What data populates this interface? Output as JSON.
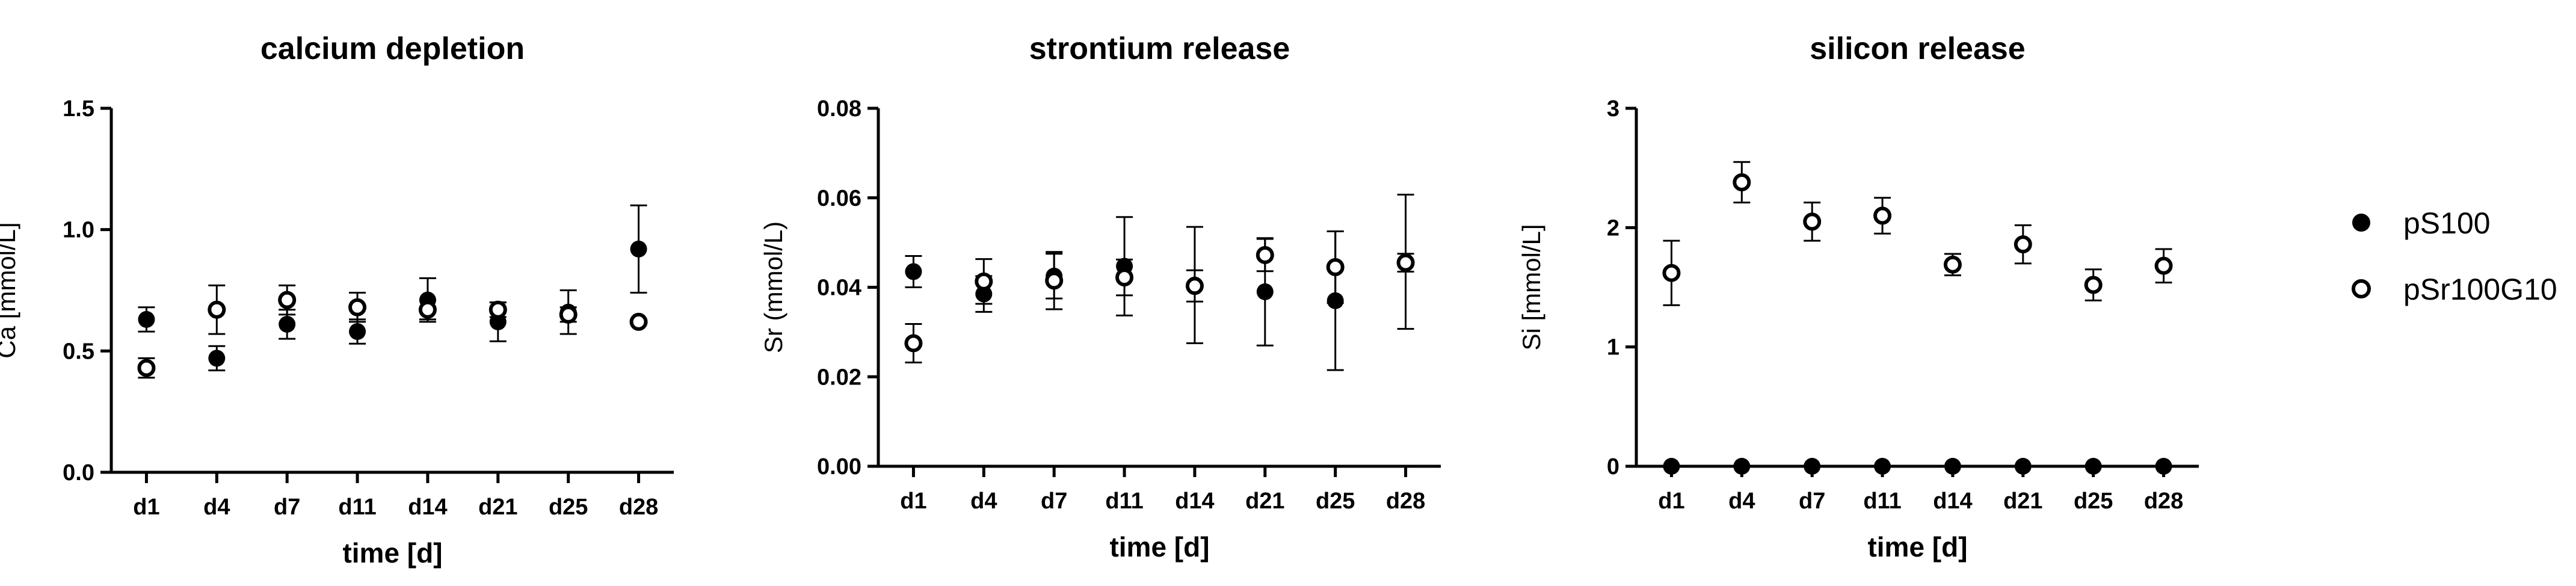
{
  "legend": [
    {
      "name": "pS100",
      "marker": "filled-circle"
    },
    {
      "name": "pSr100G10",
      "marker": "open-circle"
    }
  ],
  "colors": {
    "markers": "#000000",
    "background": "#ffffff"
  },
  "chart_data": [
    {
      "type": "scatter",
      "title": "calcium depletion",
      "xlabel": "time [d]",
      "ylabel": "Ca [mmol/L]",
      "categories": [
        "d1",
        "d4",
        "d7",
        "d11",
        "d14",
        "d21",
        "d25",
        "d28"
      ],
      "ylim": [
        0,
        1.5
      ],
      "yticks": [
        "0.0",
        "0.5",
        "1.0",
        "1.5"
      ],
      "ytick_values": [
        0,
        0.5,
        1.0,
        1.5
      ],
      "grid": false,
      "series": [
        {
          "name": "pS100",
          "marker": "filled",
          "values": [
            0.63,
            0.47,
            0.61,
            0.58,
            0.71,
            0.62,
            0.66,
            0.92
          ],
          "errors": [
            0.05,
            0.05,
            0.06,
            0.05,
            0.09,
            0.08,
            0.09,
            0.18
          ]
        },
        {
          "name": "pSr100G10",
          "marker": "open",
          "values": [
            0.43,
            0.67,
            0.71,
            0.68,
            0.67,
            0.67,
            0.65,
            0.62
          ],
          "errors": [
            0.04,
            0.1,
            0.06,
            0.06,
            0.04,
            0.03,
            0.03,
            0.01
          ]
        }
      ]
    },
    {
      "type": "scatter",
      "title": "strontium release",
      "xlabel": "time [d]",
      "ylabel": "Sr (mmol/L)",
      "categories": [
        "d1",
        "d4",
        "d7",
        "d11",
        "d14",
        "d21",
        "d25",
        "d28"
      ],
      "ylim": [
        0,
        0.08
      ],
      "yticks": [
        "0.00",
        "0.02",
        "0.04",
        "0.06",
        "0.08"
      ],
      "ytick_values": [
        0,
        0.02,
        0.04,
        0.06,
        0.08
      ],
      "grid": false,
      "series": [
        {
          "name": "pS100",
          "marker": "filled",
          "values": [
            0.0435,
            0.0385,
            0.0425,
            0.0447,
            0.0405,
            0.039,
            0.037,
            0.0457
          ],
          "errors": [
            0.0035,
            0.004,
            0.005,
            0.011,
            0.013,
            0.012,
            0.0155,
            0.015
          ]
        },
        {
          "name": "pSr100G10",
          "marker": "open",
          "values": [
            0.0275,
            0.0413,
            0.0415,
            0.0422,
            0.0403,
            0.0472,
            0.0445,
            0.0455
          ],
          "errors": [
            0.0043,
            0.005,
            0.0064,
            0.004,
            0.0035,
            0.0036,
            0.008,
            0.002
          ]
        }
      ]
    },
    {
      "type": "scatter",
      "title": "silicon release",
      "xlabel": "time [d]",
      "ylabel": "Si [mmol/L]",
      "categories": [
        "d1",
        "d4",
        "d7",
        "d11",
        "d14",
        "d21",
        "d25",
        "d28"
      ],
      "ylim": [
        0,
        3
      ],
      "yticks": [
        "0",
        "1",
        "2",
        "3"
      ],
      "ytick_values": [
        0,
        1,
        2,
        3
      ],
      "grid": false,
      "series": [
        {
          "name": "pS100",
          "marker": "filled",
          "values": [
            0,
            0,
            0,
            0,
            0,
            0,
            0,
            0
          ],
          "errors": [
            0,
            0,
            0,
            0,
            0,
            0,
            0,
            0
          ]
        },
        {
          "name": "pSr100G10",
          "marker": "open",
          "values": [
            1.62,
            2.38,
            2.05,
            2.1,
            1.69,
            1.86,
            1.52,
            1.68
          ],
          "errors": [
            0.27,
            0.17,
            0.16,
            0.15,
            0.09,
            0.16,
            0.13,
            0.14
          ]
        }
      ]
    }
  ]
}
